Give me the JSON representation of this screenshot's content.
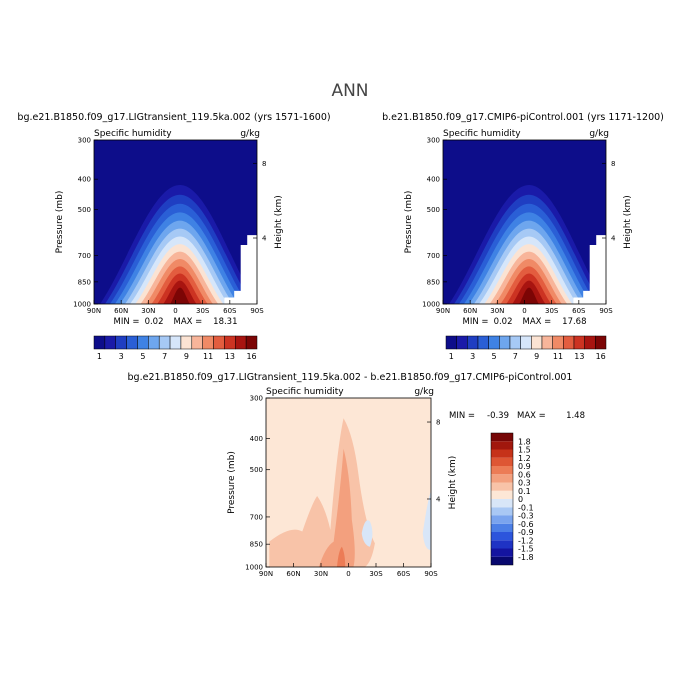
{
  "title": "ANN",
  "colors": {
    "abs_scale": [
      "#0d0d8a",
      "#1a1aa8",
      "#1f3ec2",
      "#2a5fd6",
      "#3f82e4",
      "#6ea6ee",
      "#a6c9f5",
      "#d6e6fa",
      "#fbe3d3",
      "#f8b59a",
      "#f08a66",
      "#e35d3f",
      "#cc3322",
      "#a81410",
      "#7c0505"
    ],
    "diff_scale": [
      "#08086e",
      "#1414a0",
      "#1f33c4",
      "#2c55dc",
      "#4c7fe6",
      "#7aa4ee",
      "#a9c8f4",
      "#d8e6f8",
      "#fde7d6",
      "#f8c3a8",
      "#f3a07e",
      "#ec7c56",
      "#de5634",
      "#c63219",
      "#a1170d",
      "#760606"
    ]
  },
  "chart_data": [
    {
      "type": "heatmap",
      "panel_title": "bg.e21.B1850.f09_g17.LIGtransient_119.5ka.002 (yrs 1571-1600)",
      "variable": "Specific humidity",
      "units": "g/kg",
      "xlabel": "",
      "ylabel": "Pressure (mb)",
      "ylabel_right": "Height (km)",
      "x_ticks": [
        "90N",
        "60N",
        "30N",
        "0",
        "30S",
        "60S",
        "90S"
      ],
      "y_ticks": [
        "300",
        "400",
        "500",
        "700",
        "850",
        "1000"
      ],
      "height_ticks": [
        "8",
        "4"
      ],
      "ylim": [
        300,
        1000
      ],
      "min_label": "MIN =",
      "min": "0.02",
      "max_label": "MAX =",
      "max": "18.31",
      "peak_lat": -5,
      "colorbar_labels": [
        "1",
        "3",
        "5",
        "7",
        "9",
        "11",
        "13",
        "16"
      ]
    },
    {
      "type": "heatmap",
      "panel_title": "b.e21.B1850.f09_g17.CMIP6-piControl.001 (yrs 1171-1200)",
      "variable": "Specific humidity",
      "units": "g/kg",
      "xlabel": "",
      "ylabel": "Pressure (mb)",
      "ylabel_right": "Height (km)",
      "x_ticks": [
        "90N",
        "60N",
        "30N",
        "0",
        "30S",
        "60S",
        "90S"
      ],
      "y_ticks": [
        "300",
        "400",
        "500",
        "700",
        "850",
        "1000"
      ],
      "height_ticks": [
        "8",
        "4"
      ],
      "ylim": [
        300,
        1000
      ],
      "min_label": "MIN =",
      "min": "0.02",
      "max_label": "MAX =",
      "max": "17.68",
      "peak_lat": -5,
      "colorbar_labels": [
        "1",
        "3",
        "5",
        "7",
        "9",
        "11",
        "13",
        "16"
      ]
    },
    {
      "type": "heatmap",
      "panel_title": "bg.e21.B1850.f09_g17.LIGtransient_119.5ka.002 - b.e21.B1850.f09_g17.CMIP6-piControl.001",
      "variable": "Specific humidity",
      "units": "g/kg",
      "xlabel": "",
      "ylabel": "Pressure (mb)",
      "ylabel_right": "Height (km)",
      "x_ticks": [
        "90N",
        "60N",
        "30N",
        "0",
        "30S",
        "60S",
        "90S"
      ],
      "y_ticks": [
        "300",
        "400",
        "500",
        "700",
        "850",
        "1000"
      ],
      "height_ticks": [
        "8",
        "4"
      ],
      "ylim": [
        300,
        1000
      ],
      "min_label": "MIN =",
      "min": "-0.39",
      "max_label": "MAX =",
      "max": "1.48",
      "colorbar_labels": [
        "1.8",
        "1.5",
        "1.2",
        "0.9",
        "0.6",
        "0.3",
        "0.1",
        "0",
        "-0.1",
        "-0.3",
        "-0.6",
        "-0.9",
        "-1.2",
        "-1.5",
        "-1.8"
      ]
    }
  ]
}
